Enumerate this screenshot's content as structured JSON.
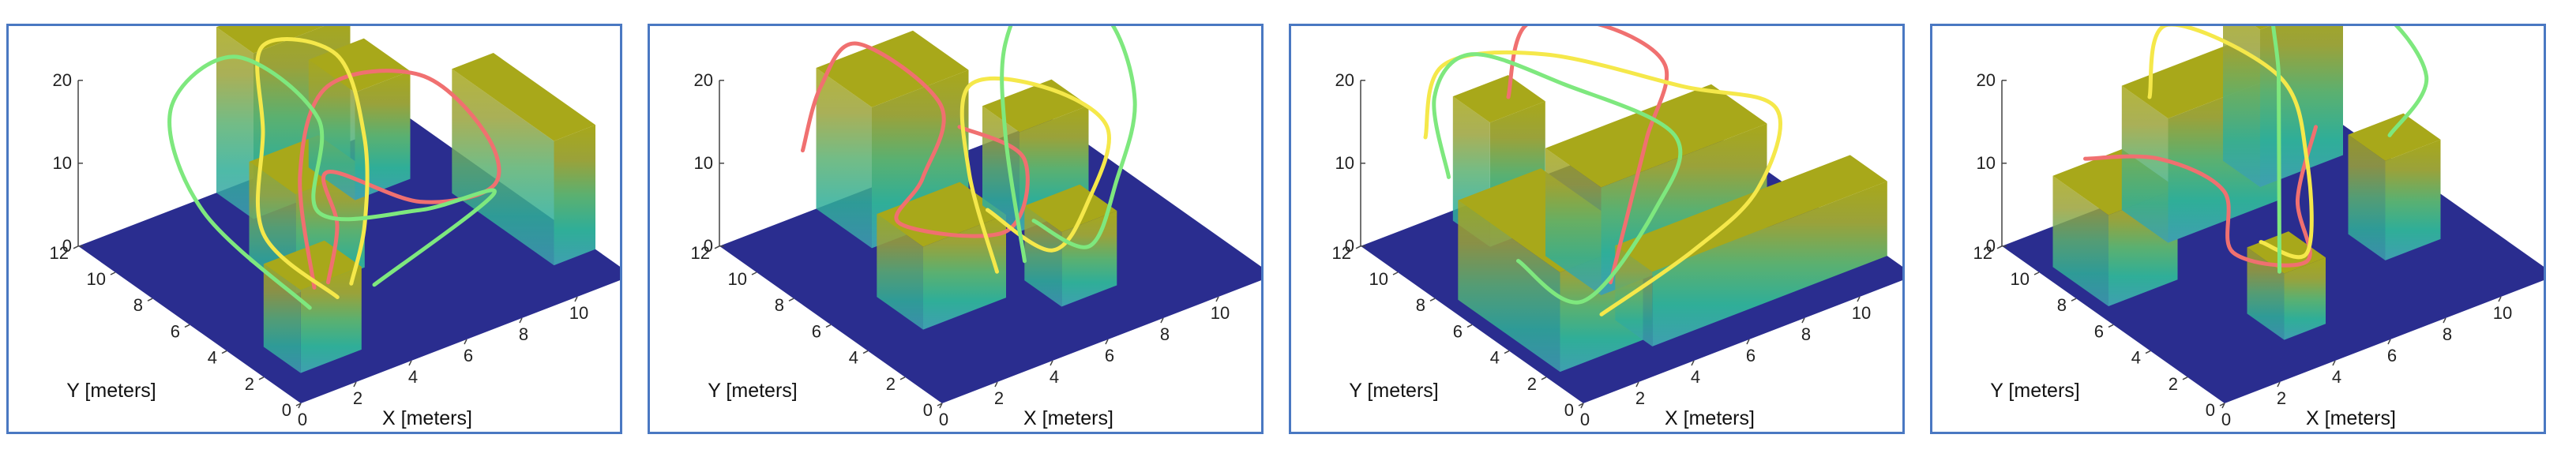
{
  "colors": {
    "frame": "#4a78c2",
    "floor": "#2a2d8f",
    "block_top": "#a8a81a",
    "block_gradient": [
      "#3f9fb0",
      "#2fae98",
      "#5bb070",
      "#9aa23a",
      "#a8a81a"
    ],
    "path_red": "#f07070",
    "path_yellow": "#f5e84a",
    "path_green": "#7ee87e"
  },
  "chart_data": [
    {
      "type": "3d-trajectories",
      "xlabel": "X [meters]",
      "ylabel": "Y [meters]",
      "zlabel": "",
      "xlim": [
        0,
        12
      ],
      "ylim": [
        0,
        12
      ],
      "zlim": [
        0,
        20
      ],
      "xticks": [
        "0",
        "2",
        "4",
        "6",
        "8",
        "10"
      ],
      "yticks": [
        "0",
        "2",
        "4",
        "6",
        "8",
        "10",
        "12"
      ],
      "zticks": [
        "0",
        "10",
        "20"
      ],
      "obstacles": [
        {
          "x": [
            1,
            3.2
          ],
          "y": [
            1.5,
            3.5
          ],
          "h": 10
        },
        {
          "x": [
            5,
            8.5
          ],
          "y": [
            10,
            12
          ],
          "h": 20
        },
        {
          "x": [
            8,
            10
          ],
          "y": [
            9,
            11.5
          ],
          "h": 13
        },
        {
          "x": [
            10.5,
            12
          ],
          "y": [
            2,
            7.5
          ],
          "h": 15
        },
        {
          "x": [
            3.5,
            6
          ],
          "y": [
            5.5,
            8
          ],
          "h": 12
        }
      ],
      "series": [
        {
          "color": "red",
          "points": [
            [
              2.5,
              3,
              6
            ],
            [
              4,
              6,
              13
            ],
            [
              7,
              9,
              15
            ],
            [
              9,
              7,
              17
            ],
            [
              10,
              5,
              12
            ],
            [
              9,
              3,
              10
            ],
            [
              7,
              4,
              9
            ],
            [
              5,
              6,
              12
            ],
            [
              4,
              4,
              10
            ],
            [
              3,
              3,
              6
            ]
          ]
        },
        {
          "color": "yellow",
          "points": [
            [
              3,
              2.5,
              5
            ],
            [
              2,
              5,
              10
            ],
            [
              4,
              8,
              15
            ],
            [
              6,
              11,
              18
            ],
            [
              8,
              10,
              16
            ],
            [
              7,
              7,
              12
            ],
            [
              5,
              4,
              9
            ],
            [
              3.5,
              2.5,
              6
            ]
          ]
        },
        {
          "color": "green",
          "points": [
            [
              2,
              2.5,
              5
            ],
            [
              0.5,
              6,
              13
            ],
            [
              2,
              10,
              17
            ],
            [
              5,
              11,
              18
            ],
            [
              6,
              8,
              14
            ],
            [
              4,
              5,
              10
            ],
            [
              7,
              4,
              8
            ],
            [
              9,
              3,
              9
            ],
            [
              4,
              2,
              6
            ]
          ]
        }
      ]
    },
    {
      "type": "3d-trajectories",
      "xlabel": "X [meters]",
      "ylabel": "Y [meters]",
      "zlabel": "",
      "xlim": [
        0,
        12
      ],
      "ylim": [
        0,
        12
      ],
      "zlim": [
        0,
        20
      ],
      "xticks": [
        "0",
        "2",
        "4",
        "6",
        "8",
        "10"
      ],
      "yticks": [
        "0",
        "2",
        "4",
        "6",
        "8",
        "10",
        "12"
      ],
      "zticks": [
        "0",
        "10",
        "20"
      ],
      "obstacles": [
        {
          "x": [
            2,
            5
          ],
          "y": [
            4,
            6.5
          ],
          "h": 10
        },
        {
          "x": [
            3.5,
            7
          ],
          "y": [
            9,
            12
          ],
          "h": 17
        },
        {
          "x": [
            7.5,
            10
          ],
          "y": [
            7,
            9
          ],
          "h": 12
        },
        {
          "x": [
            6,
            8
          ],
          "y": [
            2.5,
            4.5
          ],
          "h": 9
        }
      ],
      "series": [
        {
          "color": "red",
          "points": [
            [
              1,
              9,
              15
            ],
            [
              3,
              11,
              17
            ],
            [
              5,
              12,
              18
            ],
            [
              6,
              9,
              14
            ],
            [
              4,
              7,
              11
            ],
            [
              2.5,
              6,
              9
            ],
            [
              5,
              4,
              8
            ],
            [
              7,
              6,
              11
            ],
            [
              6,
              8,
              13
            ]
          ]
        },
        {
          "color": "yellow",
          "points": [
            [
              4,
              3,
              6
            ],
            [
              5,
              6,
              12
            ],
            [
              7,
              9,
              15
            ],
            [
              9,
              8,
              14
            ],
            [
              10,
              6,
              11
            ],
            [
              8,
              4,
              8
            ],
            [
              6,
              3,
              6
            ],
            [
              5,
              5,
              9
            ]
          ]
        },
        {
          "color": "green",
          "points": [
            [
              5,
              3,
              6
            ],
            [
              7,
              7,
              12
            ],
            [
              9,
              10,
              16
            ],
            [
              11,
              11,
              19
            ],
            [
              12,
              9,
              17
            ],
            [
              11,
              6,
              13
            ],
            [
              9,
              4,
              9
            ],
            [
              7,
              2.5,
              6
            ],
            [
              6,
              4,
              8
            ]
          ]
        }
      ]
    },
    {
      "type": "3d-trajectories",
      "xlabel": "X [meters]",
      "ylabel": "Y [meters]",
      "zlabel": "",
      "xlim": [
        0,
        12
      ],
      "ylim": [
        0,
        12
      ],
      "zlim": [
        0,
        20
      ],
      "xticks": [
        "0",
        "2",
        "4",
        "6",
        "8",
        "10"
      ],
      "yticks": [
        "0",
        "2",
        "4",
        "6",
        "8",
        "10",
        "12"
      ],
      "zticks": [
        "0",
        "10",
        "20"
      ],
      "obstacles": [
        {
          "x": [
            0.5,
            3.5
          ],
          "y": [
            2,
            7.5
          ],
          "h": 12
        },
        {
          "x": [
            3.5,
            12
          ],
          "y": [
            1.5,
            3.5
          ],
          "h": 9
        },
        {
          "x": [
            4,
            10
          ],
          "y": [
            5,
            8
          ],
          "h": 13
        },
        {
          "x": [
            3,
            5
          ],
          "y": [
            9.5,
            11.5
          ],
          "h": 15
        }
      ],
      "series": [
        {
          "color": "red",
          "points": [
            [
              4,
              10,
              16
            ],
            [
              6,
              12,
              19
            ],
            [
              8,
              11,
              18
            ],
            [
              9,
              9,
              15
            ],
            [
              7,
              7,
              12
            ],
            [
              5,
              5,
              9
            ],
            [
              3,
              3,
              6
            ]
          ]
        },
        {
          "color": "yellow",
          "points": [
            [
              1,
              10,
              15
            ],
            [
              3,
              12,
              18
            ],
            [
              6,
              11,
              17
            ],
            [
              9,
              8,
              14
            ],
            [
              11,
              6,
              12
            ],
            [
              9,
              4,
              8
            ],
            [
              6,
              3,
              6
            ],
            [
              2,
              2,
              5
            ]
          ]
        },
        {
          "color": "green",
          "points": [
            [
              0.5,
              8,
              14
            ],
            [
              2,
              11,
              17
            ],
            [
              4,
              12,
              18
            ],
            [
              6,
              10,
              15
            ],
            [
              8,
              7,
              11
            ],
            [
              6,
              5,
              8
            ],
            [
              2,
              3,
              5
            ],
            [
              1,
              5,
              8
            ]
          ]
        }
      ]
    },
    {
      "type": "3d-trajectories",
      "xlabel": "X [meters]",
      "ylabel": "Y [meters]",
      "zlabel": "",
      "xlim": [
        0,
        12
      ],
      "ylim": [
        0,
        12
      ],
      "zlim": [
        0,
        20
      ],
      "xticks": [
        "0",
        "2",
        "4",
        "6",
        "8",
        "10"
      ],
      "yticks": [
        "0",
        "2",
        "4",
        "6",
        "8",
        "10",
        "12"
      ],
      "zticks": [
        "0",
        "10",
        "20"
      ],
      "obstacles": [
        {
          "x": [
            0.5,
            3
          ],
          "y": [
            7,
            10
          ],
          "h": 11
        },
        {
          "x": [
            4,
            8
          ],
          "y": [
            9,
            11.5
          ],
          "h": 15
        },
        {
          "x": [
            8,
            11
          ],
          "y": [
            10,
            12
          ],
          "h": 19
        },
        {
          "x": [
            3.5,
            5
          ],
          "y": [
            2,
            4
          ],
          "h": 8
        },
        {
          "x": [
            8.5,
            10.5
          ],
          "y": [
            4,
            6
          ],
          "h": 12
        }
      ],
      "series": [
        {
          "color": "red",
          "points": [
            [
              1,
              9,
              14
            ],
            [
              3,
              8,
              13
            ],
            [
              4,
              6,
              11
            ],
            [
              3,
              4,
              8
            ],
            [
              5,
              3,
              6
            ],
            [
              6,
              5,
              9
            ],
            [
              8,
              7,
              12
            ]
          ]
        },
        {
          "color": "yellow",
          "points": [
            [
              4,
              10,
              16
            ],
            [
              6,
              12,
              19
            ],
            [
              8,
              9,
              15
            ],
            [
              7,
              6,
              11
            ],
            [
              5,
              3,
              7
            ],
            [
              4,
              4,
              8
            ]
          ]
        },
        {
          "color": "green",
          "points": [
            [
              4,
              3,
              6
            ],
            [
              6,
              6,
              11
            ],
            [
              8,
              9,
              15
            ],
            [
              10,
              12,
              19
            ],
            [
              12,
              10,
              17
            ],
            [
              12,
              7,
              13
            ],
            [
              10,
              6,
              10
            ]
          ]
        }
      ]
    }
  ]
}
